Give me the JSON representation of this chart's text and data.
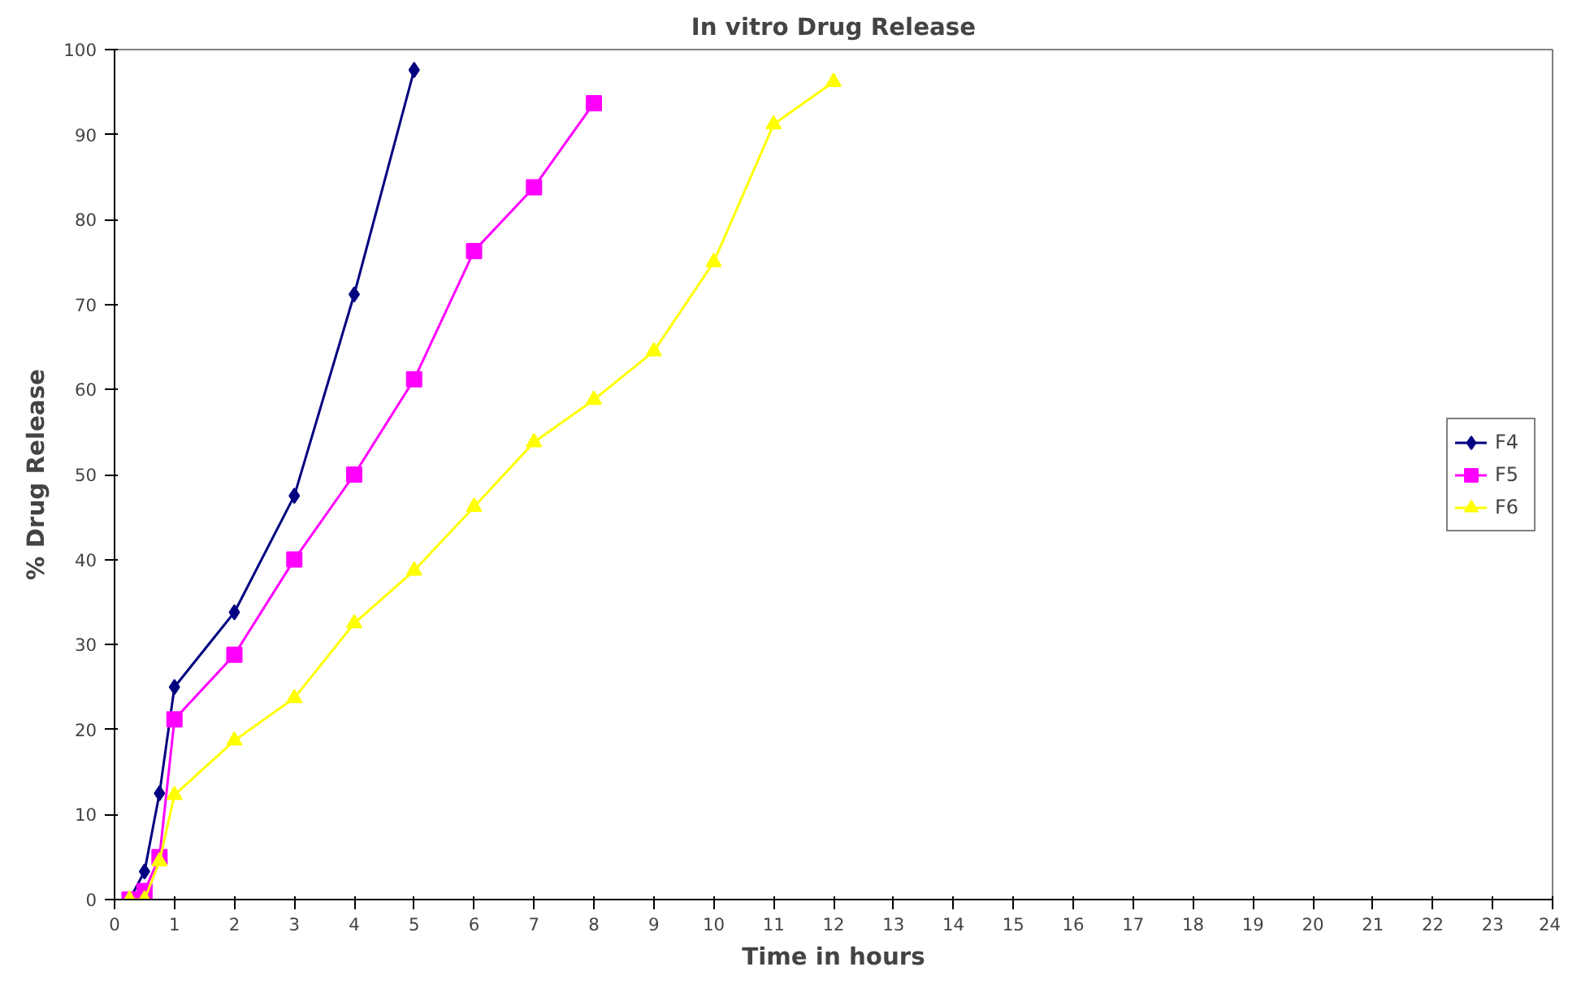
{
  "chart_data": {
    "type": "line",
    "title": "In vitro Drug Release",
    "xlabel": "Time in hours",
    "ylabel": "% Drug Release",
    "xlim": [
      0,
      24
    ],
    "xticks": [
      0,
      1,
      2,
      3,
      4,
      5,
      6,
      7,
      8,
      9,
      10,
      11,
      12,
      13,
      14,
      15,
      16,
      17,
      18,
      19,
      20,
      21,
      22,
      23,
      24
    ],
    "ylim": [
      0,
      100
    ],
    "yticks": [
      0,
      10,
      20,
      30,
      40,
      50,
      60,
      70,
      80,
      90,
      100
    ],
    "grid": false,
    "legend": "right",
    "series": [
      {
        "name": "F4",
        "color": "#000080",
        "marker": "diamond",
        "x": [
          0.25,
          0.5,
          0.75,
          1,
          2,
          3,
          4,
          5
        ],
        "values": [
          0,
          3.3,
          12.5,
          25,
          33.8,
          47.5,
          71.2,
          97.6
        ]
      },
      {
        "name": "F5",
        "color": "#ff00ff",
        "marker": "square",
        "x": [
          0.25,
          0.5,
          0.75,
          1,
          2,
          3,
          4,
          5,
          6,
          7,
          8
        ],
        "values": [
          0,
          1,
          5,
          21.2,
          28.8,
          40,
          50,
          61.2,
          76.3,
          83.8,
          93.7
        ]
      },
      {
        "name": "F6",
        "color": "#ffff00",
        "marker": "triangle",
        "x": [
          0.25,
          0.5,
          0.75,
          1,
          2,
          3,
          4,
          5,
          6,
          7,
          8,
          9,
          10,
          11,
          12
        ],
        "values": [
          0,
          0,
          4.5,
          12.3,
          18.7,
          23.7,
          32.5,
          38.7,
          46.2,
          53.8,
          58.8,
          64.5,
          75,
          91.2,
          96.2
        ]
      }
    ]
  }
}
